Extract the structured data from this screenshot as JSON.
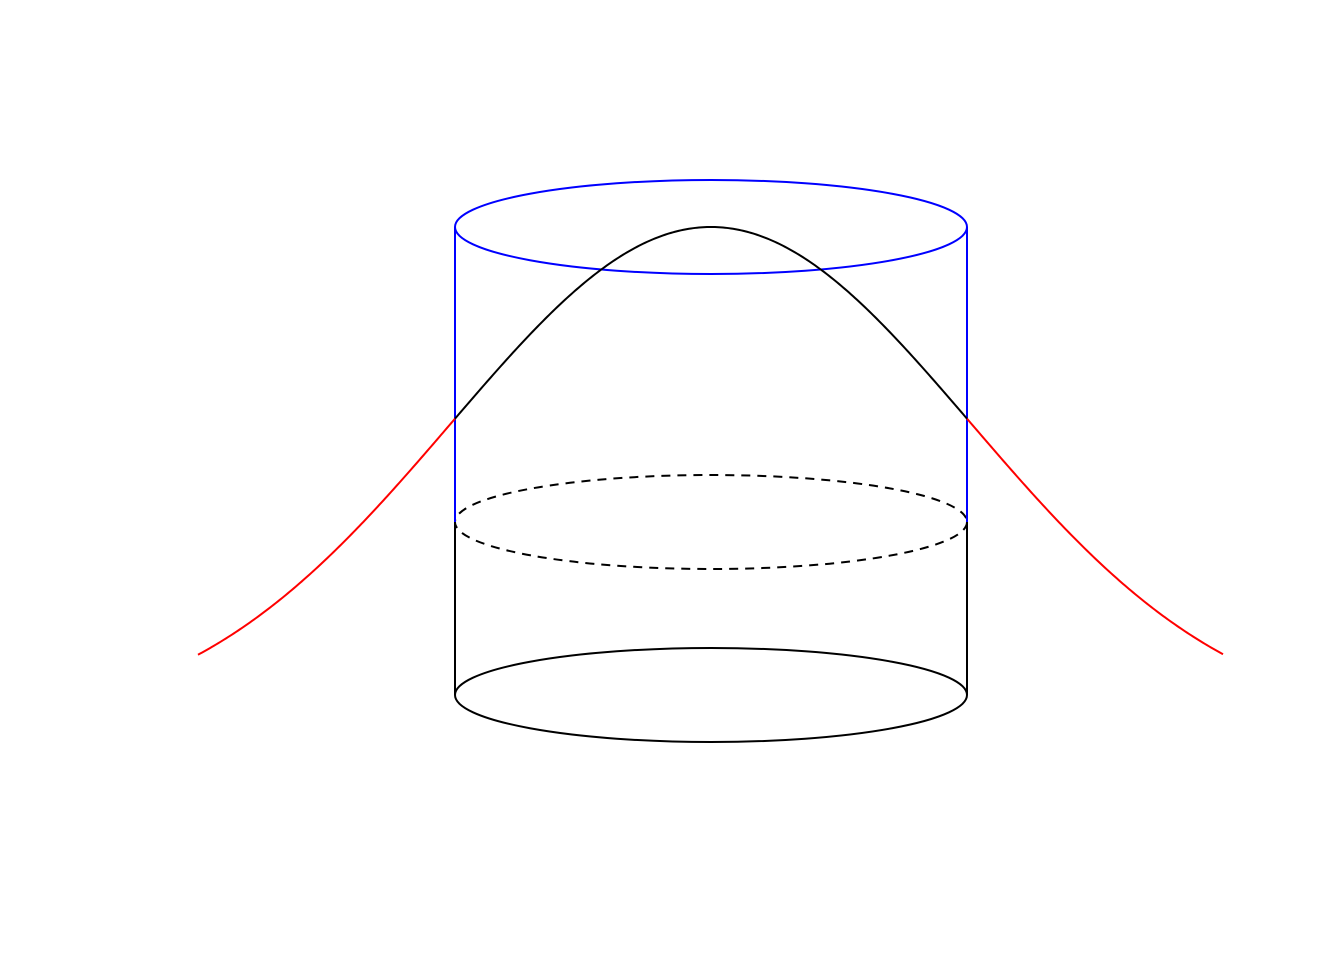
{
  "diagram": {
    "colors": {
      "background": "#ffffff",
      "upper_cylinder": "#0000ff",
      "lower_cylinder": "#000000",
      "curve_inside": "#000000",
      "curve_tails": "#ff0000"
    },
    "elements": [
      "upper-cylinder-top-ellipse",
      "upper-cylinder-left-edge",
      "upper-cylinder-right-edge",
      "middle-dashed-ellipse",
      "lower-cylinder-left-edge",
      "lower-cylinder-right-edge",
      "lower-cylinder-bottom-ellipse",
      "bell-curve-center",
      "bell-curve-left-tail",
      "bell-curve-right-tail"
    ]
  }
}
